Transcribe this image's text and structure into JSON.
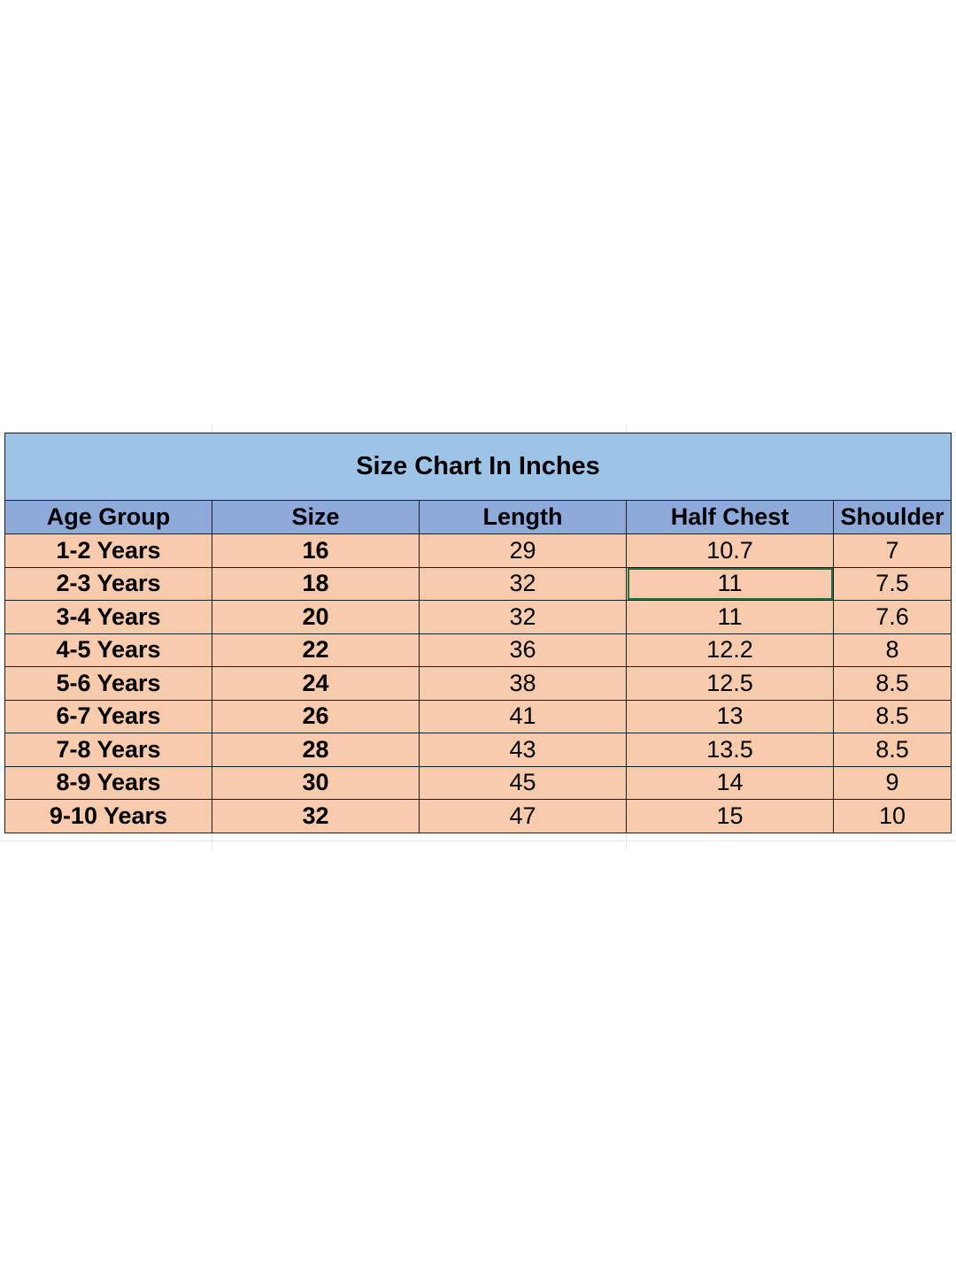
{
  "title": "Size Chart In Inches",
  "columns": [
    "Age Group",
    "Size",
    "Length",
    "Half Chest",
    "Shoulder"
  ],
  "rows": [
    [
      "1-2 Years",
      "16",
      "29",
      "10.7",
      "7"
    ],
    [
      "2-3 Years",
      "18",
      "32",
      "11",
      "7.5"
    ],
    [
      "3-4 Years",
      "20",
      "32",
      "11",
      "7.6"
    ],
    [
      "4-5 Years",
      "22",
      "36",
      "12.2",
      "8"
    ],
    [
      "5-6 Years",
      "24",
      "38",
      "12.5",
      "8.5"
    ],
    [
      "6-7 Years",
      "26",
      "41",
      "13",
      "8.5"
    ],
    [
      "7-8 Years",
      "28",
      "43",
      "13.5",
      "8.5"
    ],
    [
      "8-9 Years",
      "30",
      "45",
      "14",
      "9"
    ],
    [
      "9-10 Years",
      "32",
      "47",
      "15",
      "10"
    ]
  ],
  "selected_cell": {
    "row": 1,
    "column": 3
  },
  "colors": {
    "title_bg": "#9dc3e6",
    "header_bg": "#8eaadb",
    "row_bg": "#f8cbad",
    "selection": "#217346"
  }
}
